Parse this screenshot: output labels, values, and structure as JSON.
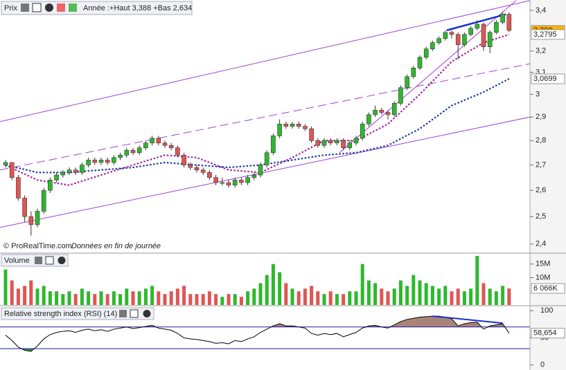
{
  "header": {
    "title": "Prix",
    "info": "Année :+Haut 3,388 +Bas 2,634"
  },
  "footer": {
    "copyright": "© ProRealTime.com",
    "note": "Données en fin de journée"
  },
  "chart_data": [
    {
      "type": "candlestick",
      "log_scale": true,
      "ylim": [
        2.37,
        3.435
      ],
      "yticks": [
        {
          "value": 3.4,
          "label": "3,4"
        },
        {
          "value": 3.2,
          "label": "3,2"
        },
        {
          "value": 3.1,
          "label": "3,1"
        },
        3,
        {
          "value": 2.9,
          "label": "2,9"
        },
        {
          "value": 2.8,
          "label": "2,8"
        },
        {
          "value": 2.7,
          "label": "2,7"
        },
        {
          "value": 2.6,
          "label": "2,6"
        },
        {
          "value": 2.5,
          "label": "2,5"
        },
        {
          "value": 2.4,
          "label": "2,4"
        }
      ],
      "up_color": "#2eb82e",
      "down_color": "#e05555",
      "price_tag_label": "3,300",
      "candles": [
        [
          2.7,
          2.72,
          2.69,
          2.71
        ],
        [
          2.71,
          2.71,
          2.64,
          2.65
        ],
        [
          2.65,
          2.66,
          2.56,
          2.57
        ],
        [
          2.57,
          2.58,
          2.48,
          2.5
        ],
        [
          2.5,
          2.52,
          2.43,
          2.47
        ],
        [
          2.47,
          2.53,
          2.46,
          2.52
        ],
        [
          2.52,
          2.61,
          2.51,
          2.6
        ],
        [
          2.6,
          2.65,
          2.59,
          2.64
        ],
        [
          2.64,
          2.67,
          2.63,
          2.66
        ],
        [
          2.66,
          2.68,
          2.65,
          2.67
        ],
        [
          2.67,
          2.69,
          2.66,
          2.68
        ],
        [
          2.68,
          2.69,
          2.66,
          2.67
        ],
        [
          2.67,
          2.71,
          2.66,
          2.7
        ],
        [
          2.7,
          2.73,
          2.69,
          2.72
        ],
        [
          2.72,
          2.73,
          2.7,
          2.71
        ],
        [
          2.71,
          2.73,
          2.7,
          2.72
        ],
        [
          2.72,
          2.73,
          2.7,
          2.71
        ],
        [
          2.71,
          2.74,
          2.7,
          2.73
        ],
        [
          2.73,
          2.75,
          2.72,
          2.74
        ],
        [
          2.74,
          2.77,
          2.73,
          2.76
        ],
        [
          2.76,
          2.77,
          2.74,
          2.75
        ],
        [
          2.75,
          2.78,
          2.74,
          2.77
        ],
        [
          2.77,
          2.8,
          2.76,
          2.79
        ],
        [
          2.79,
          2.82,
          2.78,
          2.81
        ],
        [
          2.81,
          2.82,
          2.78,
          2.79
        ],
        [
          2.79,
          2.8,
          2.77,
          2.78
        ],
        [
          2.78,
          2.79,
          2.76,
          2.77
        ],
        [
          2.77,
          2.78,
          2.73,
          2.74
        ],
        [
          2.74,
          2.75,
          2.69,
          2.7
        ],
        [
          2.7,
          2.71,
          2.68,
          2.69
        ],
        [
          2.69,
          2.7,
          2.67,
          2.68
        ],
        [
          2.68,
          2.69,
          2.66,
          2.67
        ],
        [
          2.67,
          2.68,
          2.64,
          2.65
        ],
        [
          2.65,
          2.66,
          2.62,
          2.63
        ],
        [
          2.63,
          2.65,
          2.62,
          2.63
        ],
        [
          2.63,
          2.64,
          2.61,
          2.62
        ],
        [
          2.62,
          2.65,
          2.61,
          2.64
        ],
        [
          2.64,
          2.65,
          2.62,
          2.63
        ],
        [
          2.63,
          2.66,
          2.62,
          2.65
        ],
        [
          2.65,
          2.67,
          2.64,
          2.66
        ],
        [
          2.66,
          2.71,
          2.65,
          2.7
        ],
        [
          2.7,
          2.76,
          2.69,
          2.75
        ],
        [
          2.75,
          2.83,
          2.74,
          2.82
        ],
        [
          2.82,
          2.89,
          2.81,
          2.87
        ],
        [
          2.87,
          2.88,
          2.85,
          2.86
        ],
        [
          2.86,
          2.88,
          2.85,
          2.87
        ],
        [
          2.87,
          2.88,
          2.85,
          2.86
        ],
        [
          2.86,
          2.87,
          2.84,
          2.85
        ],
        [
          2.85,
          2.86,
          2.79,
          2.8
        ],
        [
          2.8,
          2.81,
          2.77,
          2.78
        ],
        [
          2.78,
          2.81,
          2.77,
          2.8
        ],
        [
          2.8,
          2.81,
          2.78,
          2.79
        ],
        [
          2.79,
          2.81,
          2.78,
          2.8
        ],
        [
          2.8,
          2.81,
          2.76,
          2.77
        ],
        [
          2.77,
          2.8,
          2.76,
          2.79
        ],
        [
          2.79,
          2.82,
          2.78,
          2.81
        ],
        [
          2.81,
          2.88,
          2.8,
          2.87
        ],
        [
          2.87,
          2.92,
          2.86,
          2.91
        ],
        [
          2.91,
          2.95,
          2.9,
          2.93
        ],
        [
          2.93,
          2.94,
          2.91,
          2.92
        ],
        [
          2.92,
          2.93,
          2.89,
          2.91
        ],
        [
          2.91,
          2.97,
          2.9,
          2.96
        ],
        [
          2.96,
          3.04,
          2.95,
          3.03
        ],
        [
          3.03,
          3.09,
          3.02,
          3.08
        ],
        [
          3.08,
          3.13,
          3.07,
          3.12
        ],
        [
          3.12,
          3.18,
          3.11,
          3.17
        ],
        [
          3.17,
          3.22,
          3.16,
          3.21
        ],
        [
          3.21,
          3.25,
          3.2,
          3.24
        ],
        [
          3.24,
          3.27,
          3.23,
          3.26
        ],
        [
          3.26,
          3.3,
          3.25,
          3.29
        ],
        [
          3.29,
          3.3,
          3.26,
          3.28
        ],
        [
          3.28,
          3.29,
          3.16,
          3.23
        ],
        [
          3.23,
          3.29,
          3.22,
          3.28
        ],
        [
          3.28,
          3.32,
          3.27,
          3.31
        ],
        [
          3.31,
          3.35,
          3.3,
          3.33
        ],
        [
          3.33,
          3.34,
          3.2,
          3.22
        ],
        [
          3.22,
          3.3,
          3.19,
          3.29
        ],
        [
          3.29,
          3.35,
          3.28,
          3.34
        ],
        [
          3.34,
          3.39,
          3.33,
          3.38
        ],
        [
          3.38,
          3.39,
          3.29,
          3.3
        ]
      ],
      "series": [
        {
          "color": "#a020a0",
          "x": [
            0,
            5,
            10,
            15,
            20,
            25,
            30,
            35,
            40,
            45,
            50,
            55,
            60,
            65,
            70,
            75,
            79
          ],
          "values": [
            2.7,
            2.64,
            2.62,
            2.66,
            2.7,
            2.74,
            2.73,
            2.68,
            2.67,
            2.73,
            2.8,
            2.8,
            2.87,
            3.0,
            3.15,
            3.24,
            3.2795
          ],
          "last_label": "3,2795",
          "tag_bg": "#ffffff"
        },
        {
          "color": "#1a3a9a",
          "x": [
            0,
            5,
            10,
            15,
            20,
            25,
            30,
            35,
            40,
            45,
            50,
            55,
            60,
            65,
            70,
            75,
            79
          ],
          "values": [
            2.7,
            2.67,
            2.67,
            2.68,
            2.69,
            2.71,
            2.7,
            2.69,
            2.7,
            2.72,
            2.74,
            2.75,
            2.78,
            2.85,
            2.95,
            3.01,
            3.0699
          ],
          "last_label": "3,0699",
          "tag_bg": "#ffffff"
        }
      ],
      "lines": [
        {
          "color": "#a040d0",
          "dash": false,
          "width": 1,
          "x": [
            -0.87,
            82.3
          ],
          "values": [
            2.88,
            3.45
          ]
        },
        {
          "color": "#a040d0",
          "dash": false,
          "width": 1,
          "x": [
            -0.87,
            82.3
          ],
          "values": [
            2.46,
            2.9
          ]
        },
        {
          "color": "#a040d0",
          "dash": true,
          "width": 1,
          "x": [
            -0.87,
            82.3
          ],
          "values": [
            2.68,
            3.14
          ]
        },
        {
          "color": "#a040d0",
          "dash": false,
          "width": 1,
          "x": [
            52.4,
            80.1
          ],
          "values": [
            2.75,
            3.45
          ]
        },
        {
          "color": "#1a2fd0",
          "dash": false,
          "width": 2.5,
          "x": [
            69.2,
            78.5
          ],
          "values": [
            3.3,
            3.38
          ]
        }
      ]
    },
    {
      "type": "bar",
      "title": "Volume",
      "ylim": [
        0,
        18.75
      ],
      "yticks": [
        {
          "value": 10,
          "label": "10M"
        },
        {
          "value": 15,
          "label": "15M"
        }
      ],
      "last_label": "6 066K",
      "values": [
        13,
        9,
        6,
        7,
        9,
        6,
        7,
        5,
        5,
        4,
        5,
        4,
        6,
        5,
        4,
        5,
        4,
        5,
        4,
        6,
        5,
        5,
        6,
        7,
        5,
        4,
        5,
        6,
        7,
        4,
        4,
        4,
        5,
        4,
        3,
        4,
        4,
        3,
        5,
        6,
        8,
        11,
        15,
        12,
        8,
        6,
        5,
        6,
        7,
        5,
        4,
        5,
        4,
        4,
        5,
        5,
        15,
        9,
        8,
        6,
        5,
        6,
        9,
        7,
        11,
        9,
        8,
        7,
        6,
        7,
        5,
        6,
        5,
        6,
        18,
        8,
        6,
        5,
        7,
        6.066
      ]
    },
    {
      "type": "line",
      "title": "Relative strength index (RSI) (14)",
      "ylim": [
        -9.3,
        106.7
      ],
      "yticks": [
        0,
        50,
        100
      ],
      "levels": [
        30,
        70
      ],
      "color": "#000000",
      "overbought_color": "#a88478",
      "oversold_color": "#3f9a3f",
      "level_color": "#1a1aa0",
      "last_label": "58,654",
      "values": [
        55,
        45,
        33,
        27,
        25,
        35,
        48,
        56,
        60,
        62,
        63,
        60,
        64,
        66,
        63,
        65,
        62,
        66,
        68,
        70,
        67,
        69,
        71,
        73,
        68,
        66,
        64,
        58,
        50,
        48,
        47,
        45,
        43,
        40,
        41,
        39,
        45,
        43,
        48,
        52,
        60,
        66,
        72,
        76,
        72,
        72,
        70,
        68,
        58,
        55,
        58,
        56,
        58,
        52,
        56,
        60,
        68,
        72,
        73,
        70,
        68,
        74,
        80,
        84,
        86,
        88,
        89,
        90,
        90,
        88,
        85,
        72,
        76,
        78,
        79,
        66,
        72,
        74,
        76,
        58.654
      ],
      "lines": [
        {
          "color": "#1a2fd0",
          "width": 2,
          "x": [
            67,
            78
          ],
          "values": [
            90,
            77
          ]
        }
      ]
    }
  ]
}
